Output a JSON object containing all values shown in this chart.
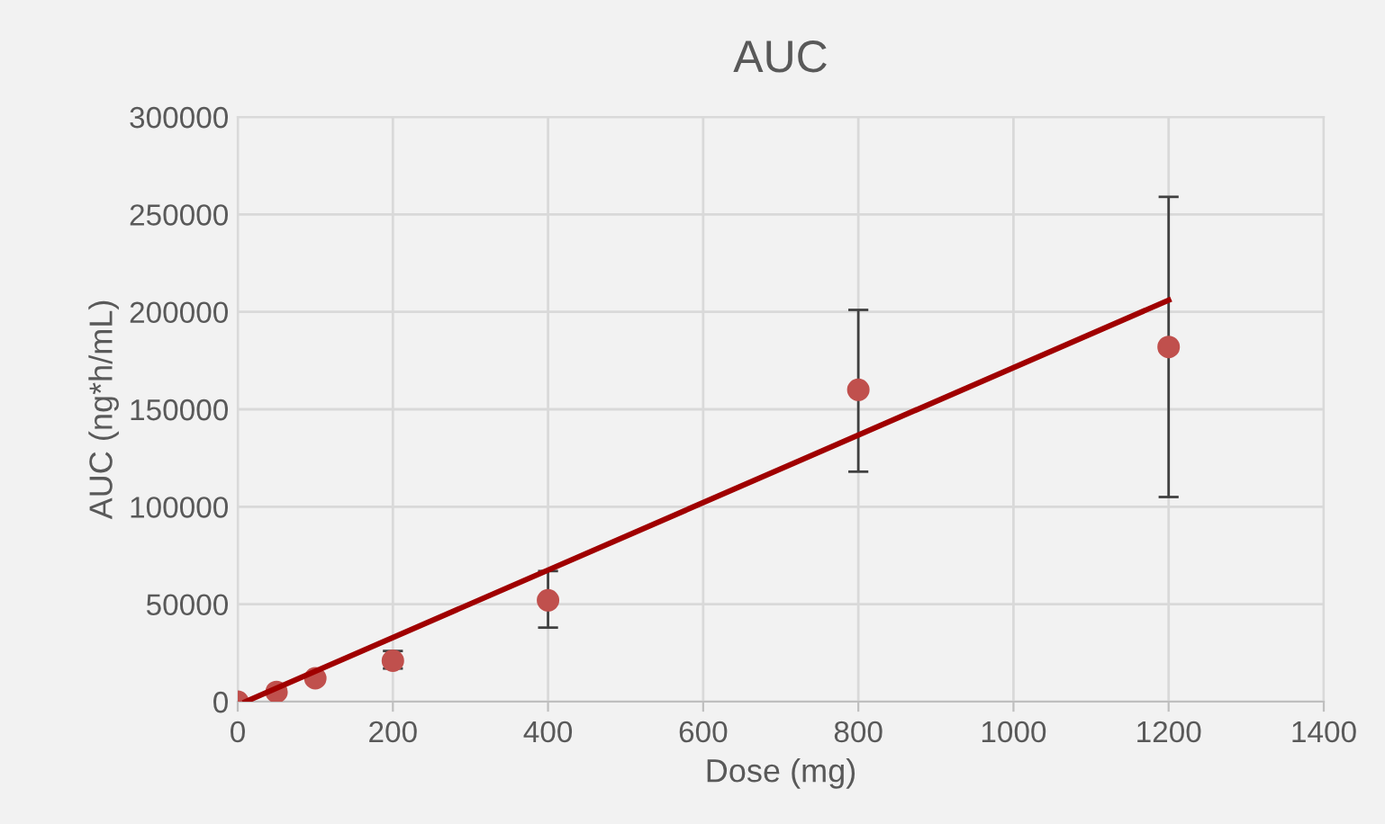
{
  "chart_data": {
    "type": "scatter",
    "title": "AUC",
    "xlabel": "Dose (mg)",
    "ylabel": "AUC (ng*h/mL)",
    "xlim": [
      0,
      1400
    ],
    "xticks": [
      0,
      200,
      400,
      600,
      800,
      1000,
      1200,
      1400
    ],
    "ylim": [
      0,
      300000
    ],
    "yticks": [
      0,
      50000,
      100000,
      150000,
      200000,
      250000,
      300000
    ],
    "grid": true,
    "series": [
      {
        "color": "#c0504d",
        "marker": "circle",
        "x": [
          0,
          50,
          100,
          200,
          400,
          800,
          1200
        ],
        "values": [
          0,
          5000,
          12000,
          21000,
          52000,
          160000,
          182000
        ],
        "errors": [
          null,
          null,
          null,
          [
            17000,
            26000
          ],
          [
            38000,
            67000
          ],
          [
            118000,
            201000
          ],
          [
            105000,
            259000
          ]
        ]
      },
      {
        "type": "line",
        "color": "#a00000",
        "marker": "none",
        "x": [
          10,
          1200
        ],
        "values": [
          0,
          206000
        ]
      }
    ]
  }
}
